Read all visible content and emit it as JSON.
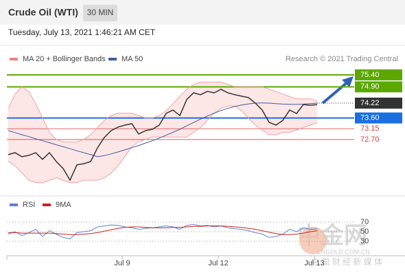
{
  "chart_data": [
    {
      "type": "line",
      "title": "Crude Oil (WTI)",
      "timeframe": "30 MIN",
      "subtitle": "Tuesday, July 13, 2021 1:46:21 AM CET",
      "legend": [
        "MA 20 + Bollinger Bands",
        "MA 50"
      ],
      "legend_colors": [
        "#f08080",
        "#3a5da0"
      ],
      "credit": "Research © 2021 Trading Central",
      "xlim": [
        0,
        57
      ],
      "ylim": [
        70.4,
        75.8
      ],
      "x": [
        0,
        1,
        2,
        3,
        4,
        5,
        6,
        7,
        8,
        9,
        10,
        11,
        12,
        13,
        14,
        15,
        16,
        17,
        18,
        19,
        20,
        21,
        22,
        23,
        24,
        25,
        26,
        27,
        28,
        29,
        30,
        31,
        32,
        33,
        34,
        35,
        36,
        37,
        38,
        39,
        40,
        41,
        42,
        43,
        44,
        45
      ],
      "series": [
        {
          "color": "#f4a0a0",
          "values": [
            74.0,
            74.6,
            74.9,
            74.7,
            74.2,
            73.6,
            73.0,
            72.7,
            72.6,
            72.6,
            72.6,
            72.7,
            72.9,
            73.2,
            73.5,
            73.7,
            73.8,
            73.8,
            73.8,
            73.7,
            73.6,
            73.6,
            73.7,
            73.9,
            74.2,
            74.5,
            74.8,
            75.0,
            75.1,
            75.1,
            75.1,
            75.1,
            75.0,
            74.9,
            74.9,
            74.9,
            74.9,
            74.9,
            74.8,
            74.7,
            74.6,
            74.5,
            74.4,
            74.4,
            74.4,
            74.3
          ]
        },
        {
          "color": "#f4a0a0",
          "values": [
            71.8,
            71.6,
            71.3,
            71.0,
            70.9,
            70.9,
            71.0,
            71.1,
            71.0,
            70.9,
            70.9,
            71.0,
            71.0,
            71.0,
            71.1,
            71.3,
            71.6,
            72.0,
            72.4,
            72.6,
            72.7,
            72.8,
            72.8,
            72.8,
            72.8,
            72.8,
            72.8,
            73.0,
            73.2,
            73.5,
            73.8,
            74.0,
            74.1,
            74.1,
            73.9,
            73.6,
            73.3,
            73.1,
            72.9,
            72.9,
            73.0,
            73.0,
            73.1,
            73.2,
            73.3,
            73.4
          ]
        },
        {
          "color": "#3a5da0",
          "values": [
            73.07,
            72.99,
            72.9,
            72.82,
            72.73,
            72.65,
            72.57,
            72.48,
            72.4,
            72.32,
            72.23,
            72.15,
            72.07,
            71.98,
            72.03,
            72.1,
            72.18,
            72.27,
            72.36,
            72.45,
            72.55,
            72.65,
            72.76,
            72.88,
            73.0,
            73.13,
            73.27,
            73.41,
            73.55,
            73.68,
            73.8,
            73.91,
            74.0,
            74.08,
            74.14,
            74.19,
            74.22,
            74.23,
            74.22,
            74.2,
            74.18,
            74.17,
            74.17,
            74.18,
            74.2,
            74.22
          ]
        },
        {
          "color": "#333333",
          "values": [
            72.07,
            72.15,
            71.98,
            72.04,
            72.15,
            71.87,
            72.15,
            71.78,
            71.49,
            71.0,
            71.64,
            71.69,
            71.78,
            72.35,
            72.79,
            73.07,
            73.22,
            73.3,
            73.36,
            72.93,
            73.07,
            73.13,
            73.3,
            73.79,
            73.93,
            73.7,
            74.37,
            74.65,
            74.57,
            74.71,
            74.65,
            74.8,
            74.65,
            74.57,
            74.51,
            74.45,
            74.22,
            73.93,
            73.42,
            73.3,
            73.5,
            73.93,
            73.79,
            74.16,
            74.13,
            74.16
          ]
        }
      ],
      "levels": [
        {
          "value": 75.4,
          "label": "75.40",
          "color": "#5aa800",
          "style": "box"
        },
        {
          "value": 74.9,
          "label": "74.90",
          "color": "#5aa800",
          "style": "box"
        },
        {
          "value": 74.22,
          "color": "#333333",
          "style": "current"
        },
        {
          "value": 73.6,
          "label": "73.60",
          "color": "#1a6fe0",
          "style": "box"
        },
        {
          "value": 73.15,
          "color": "#d04040",
          "style": "text"
        },
        {
          "value": 72.7,
          "label": "72.70",
          "color": "#d04040",
          "style": "text"
        }
      ]
    },
    {
      "type": "line",
      "legend": [
        "RSI",
        "9MA"
      ],
      "ylim": [
        0,
        110
      ],
      "yticks": [
        70,
        50,
        {
          "value": 30,
          "label": "30"
        }
      ],
      "xticks": [
        {
          "value": 16.6,
          "label": "Jul 9"
        },
        {
          "value": 30.6,
          "label": "Jul 12"
        },
        {
          "value": 44.6,
          "label": "Jul 13"
        }
      ],
      "series": [
        {
          "color": "#5b7fd6",
          "values": [
            45,
            50,
            42,
            48,
            55,
            40,
            52,
            45,
            38,
            35,
            48,
            50,
            52,
            60,
            62,
            64,
            63,
            60,
            58,
            55,
            57,
            58,
            60,
            62,
            60,
            55,
            63,
            65,
            62,
            63,
            60,
            62,
            58,
            56,
            55,
            52,
            48,
            45,
            38,
            40,
            45,
            55,
            50,
            58,
            55,
            56
          ]
        },
        {
          "color": "#d02020",
          "values": [
            48,
            48,
            47,
            47,
            47,
            47,
            47,
            46,
            45,
            44,
            44,
            45,
            46,
            48,
            51,
            54,
            57,
            59,
            60,
            60,
            59,
            58,
            58,
            58,
            59,
            59,
            60,
            61,
            61,
            62,
            62,
            62,
            61,
            60,
            59,
            57,
            55,
            52,
            49,
            46,
            44,
            44,
            45,
            47,
            50,
            52
          ]
        }
      ]
    }
  ],
  "watermark": {
    "name": "中金网",
    "site": "CNGOLD.COM.CN",
    "slogan": "中 国 财 经 新 媒 体"
  }
}
